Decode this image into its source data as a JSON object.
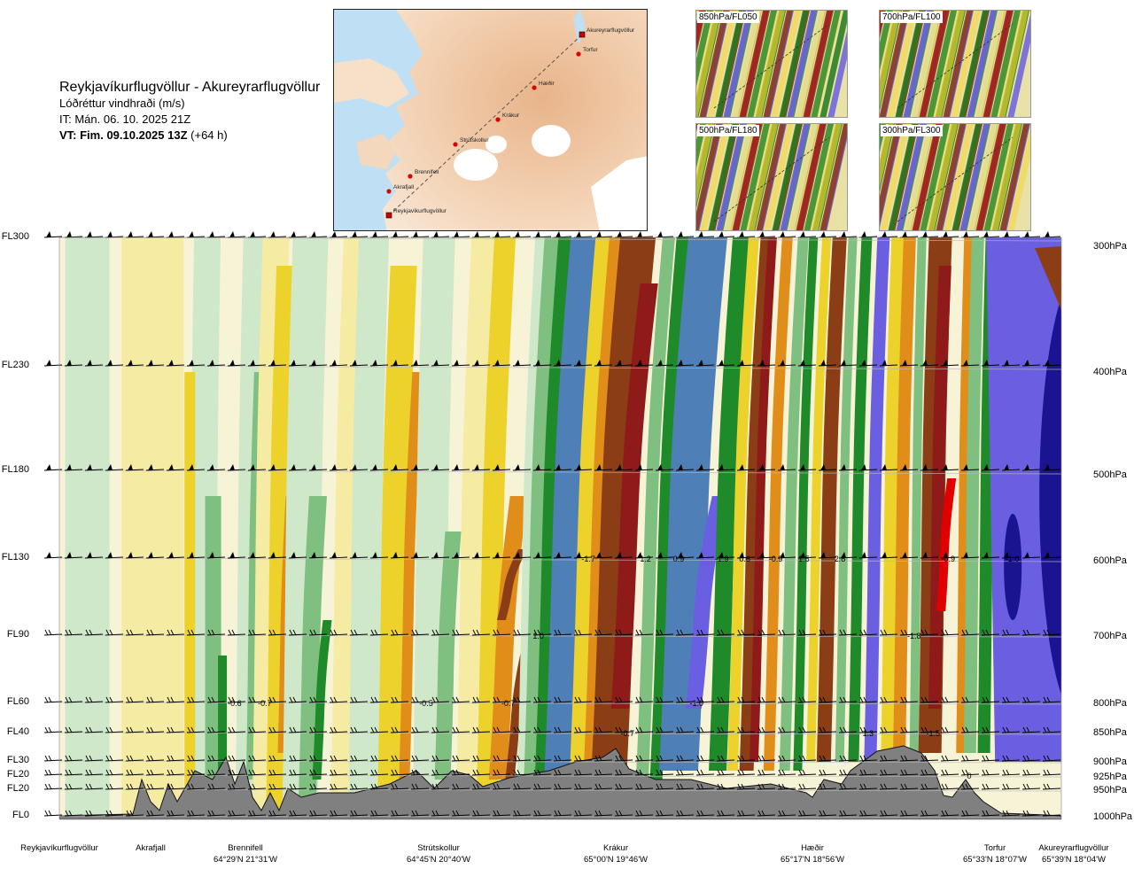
{
  "header": {
    "route": "Reykjavíkurflugvöllur - Akureyrarflugvöllur",
    "variable": "Lóðréttur vindhraði (m/s)",
    "init_time": "IT: Mán. 06. 10. 2025 21Z",
    "valid_prefix": "VT: Fim. 09.10.2025 13Z",
    "valid_suffix": " (+64 h)"
  },
  "map": {
    "stations": [
      "Akureyrarflugvöllur",
      "Torfur",
      "Hæðir",
      "Krákur",
      "Strútskollur",
      "Brennifell",
      "Akrafjall",
      "Reykjavíkurflugvöllur"
    ]
  },
  "thumbnails": [
    {
      "label": "850hPa/FL050"
    },
    {
      "label": "700hPa/FL100"
    },
    {
      "label": "500hPa/FL180"
    },
    {
      "label": "300hPa/FL300"
    }
  ],
  "chart_data": {
    "type": "heatmap",
    "title": "Reykjavíkurflugvöllur - Akureyrarflugvöllur",
    "flight_levels": [
      "FL300",
      "FL230",
      "FL180",
      "FL130",
      "FL90",
      "FL60",
      "FL40",
      "FL30",
      "FL20",
      "FL20",
      "FL0"
    ],
    "pressure_levels": [
      "300hPa",
      "400hPa",
      "500hPa",
      "600hPa",
      "700hPa",
      "800hPa",
      "850hPa",
      "900hPa",
      "925hPa",
      "950hPa",
      "1000hPa"
    ],
    "locations": [
      {
        "name": "Reykjavíkurflugvöllur",
        "coord": ""
      },
      {
        "name": "Akrafjall",
        "coord": ""
      },
      {
        "name": "Brennifell",
        "coord": "64°29'N 21°31'W"
      },
      {
        "name": "Strútskollur",
        "coord": "64°45'N 20°40'W"
      },
      {
        "name": "Krákur",
        "coord": "65°00'N 19°46'W"
      },
      {
        "name": "Hæðir",
        "coord": "65°17'N 18°56'W"
      },
      {
        "name": "Torfur",
        "coord": "65°33'N 18°07'W"
      },
      {
        "name": "Akureyrarflugvöllur",
        "coord": "65°39'N 18°04'W"
      }
    ],
    "value_labels": [
      {
        "text": "-0.6",
        "x": 0.175,
        "level": "FL60"
      },
      {
        "text": "-0.7",
        "x": 0.205,
        "level": "FL60"
      },
      {
        "text": "-0.5",
        "x": 0.366,
        "level": "FL60"
      },
      {
        "text": "-0.7",
        "x": 0.448,
        "level": "FL60"
      },
      {
        "text": "-1.7",
        "x": 0.528,
        "level": "FL130"
      },
      {
        "text": "1.2",
        "x": 0.585,
        "level": "FL130"
      },
      {
        "text": "0.9",
        "x": 0.618,
        "level": "FL130"
      },
      {
        "text": "1.0",
        "x": 0.478,
        "level": "FL90"
      },
      {
        "text": "-1.9",
        "x": 0.661,
        "level": "FL130"
      },
      {
        "text": "0.6",
        "x": 0.684,
        "level": "FL130"
      },
      {
        "text": "-0.9",
        "x": 0.715,
        "level": "FL130"
      },
      {
        "text": "1.5",
        "x": 0.743,
        "level": "FL130"
      },
      {
        "text": "2.8",
        "x": 0.779,
        "level": "FL130"
      },
      {
        "text": "-1.0",
        "x": 0.636,
        "level": "FL60"
      },
      {
        "text": "-0.7",
        "x": 0.567,
        "level": "FL40"
      },
      {
        "text": "1.3",
        "x": 0.807,
        "level": "FL40"
      },
      {
        "text": "-1.8",
        "x": 0.853,
        "level": "FL90"
      },
      {
        "text": "-1.5",
        "x": 0.872,
        "level": "FL40"
      },
      {
        "text": "-0.9",
        "x": 0.887,
        "level": "FL130"
      },
      {
        "text": "-1.0",
        "x": 0.951,
        "level": "FL130"
      },
      {
        "text": "0",
        "x": 0.908,
        "level": "FL20"
      }
    ],
    "colors": {
      "strong_up": "#e00000",
      "up_dark": "#8e1a1a",
      "up_brown": "#8b3e16",
      "up_orange": "#e08d1a",
      "up_yellow": "#ecd22b",
      "weak_yellow": "#f6eba3",
      "neutral": "#f7f3d6",
      "weak_green": "#cfe8c9",
      "down_green": "#7fbf7f",
      "down_dark_green": "#1f8a2a",
      "down_steel": "#4f7fb7",
      "down_blue": "#6a5fe0",
      "down_navy": "#1a1490",
      "terrain": "#808080"
    }
  }
}
